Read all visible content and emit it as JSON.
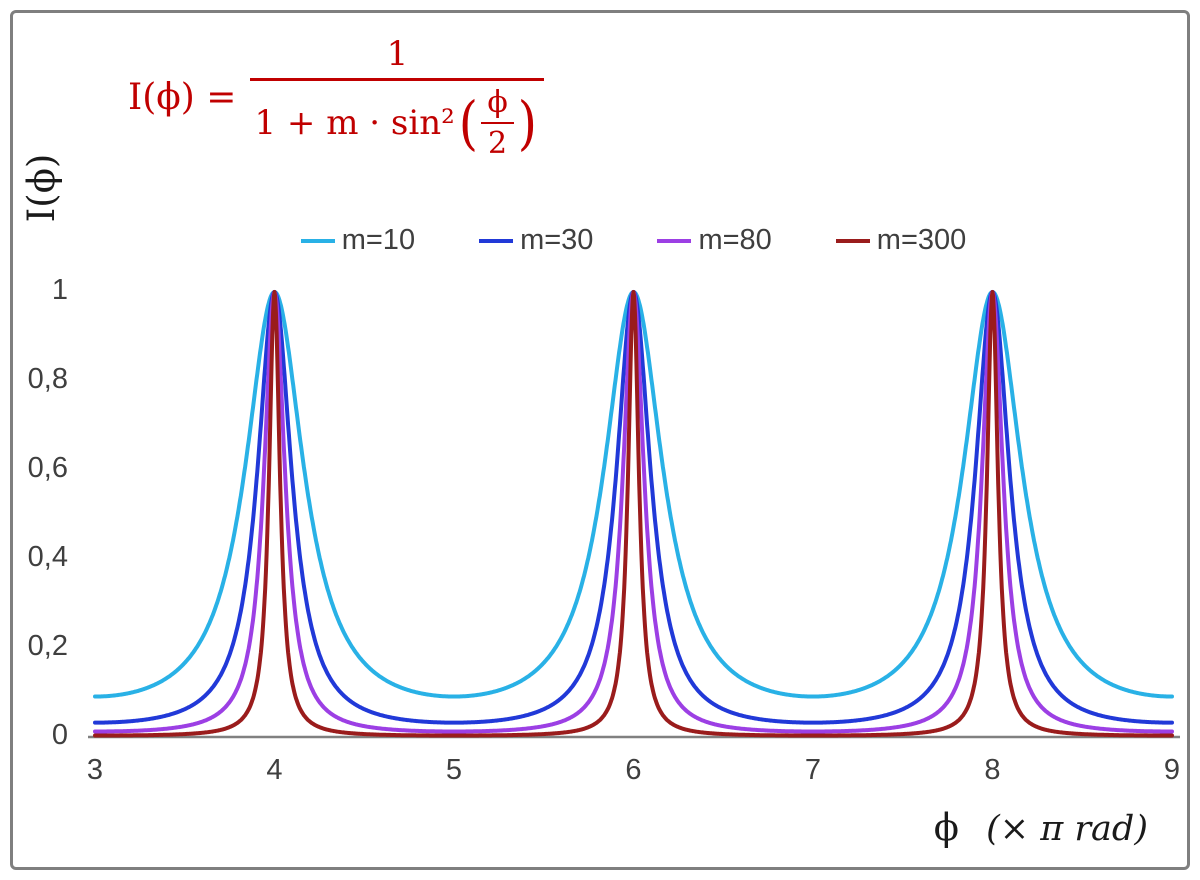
{
  "formula": {
    "lhs": "I(ϕ) =",
    "numerator": "1",
    "den_prefix": "1 + m · sin²",
    "open_paren": "(",
    "inner_num": "ϕ",
    "inner_den": "2",
    "close_paren": ")",
    "color": "#C00000"
  },
  "y_axis": {
    "title": "I(ϕ)",
    "tick_labels": [
      "1",
      "0,8",
      "0,6",
      "0,4",
      "0,2",
      "0"
    ],
    "tick_values": [
      1,
      0.8,
      0.6,
      0.4,
      0.2,
      0
    ]
  },
  "x_axis": {
    "title_phi": "ϕ",
    "title_rest": "(× π rad)",
    "tick_labels": [
      "3",
      "4",
      "5",
      "6",
      "7",
      "8",
      "9"
    ],
    "tick_values": [
      3,
      4,
      5,
      6,
      7,
      8,
      9
    ]
  },
  "chart_data": {
    "type": "line",
    "title": "",
    "function": "I(x) = 1 / (1 + m · sin²(x·π/2)), x measured in units of π rad",
    "xlabel": "ϕ (× π rad)",
    "ylabel": "I(ϕ)",
    "x_range": [
      3,
      9
    ],
    "y_range": [
      0,
      1
    ],
    "x_ticks": [
      3,
      4,
      5,
      6,
      7,
      8,
      9
    ],
    "y_ticks": [
      0,
      0.2,
      0.4,
      0.6,
      0.8,
      1
    ],
    "peaks_at_x": [
      4,
      6,
      8
    ],
    "peak_value": 1,
    "grid": false,
    "legend_position": "top-center",
    "axis_color": "#808080",
    "series": [
      {
        "name": "m=10",
        "m": 10,
        "color": "#29B1E6",
        "min_value": 0.0909
      },
      {
        "name": "m=30",
        "m": 30,
        "color": "#2139D8",
        "min_value": 0.0323
      },
      {
        "name": "m=80",
        "m": 80,
        "color": "#9C3FE4",
        "min_value": 0.0123
      },
      {
        "name": "m=300",
        "m": 300,
        "color": "#9A1C1C",
        "min_value": 0.0033
      }
    ]
  }
}
